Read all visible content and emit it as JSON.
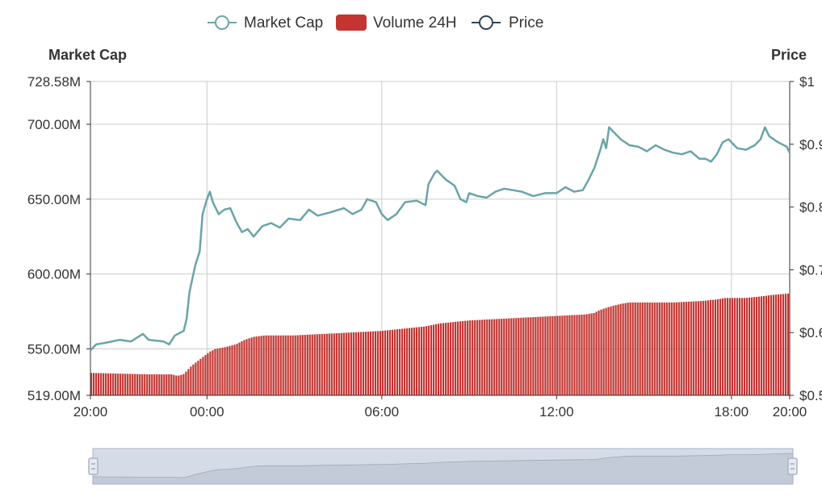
{
  "colors": {
    "market_cap": "#6aa4a8",
    "volume": "#c23531",
    "price": "#2f4554",
    "grid": "#cccccc",
    "axis": "#333333",
    "zoom_fill": "#d5dce7",
    "zoom_border": "#aab4c8"
  },
  "legend": [
    {
      "name": "Market Cap",
      "icon": "line-circle-icon"
    },
    {
      "name": "Volume 24H",
      "icon": "rect-icon"
    },
    {
      "name": "Price",
      "icon": "line-circle-icon"
    }
  ],
  "chart_data": {
    "type": "line",
    "x_axis": {
      "tick_labels": [
        "20:00",
        "00:00",
        "06:00",
        "12:00",
        "18:00",
        "20:00"
      ],
      "tick_times_hours": [
        0,
        4,
        10,
        16,
        22,
        24
      ],
      "range_hours": [
        0,
        24
      ]
    },
    "y_axis_left": {
      "name": "Market Cap",
      "range": [
        519,
        728.58
      ],
      "unit": "M",
      "tick_values": [
        519,
        550,
        600,
        650,
        700,
        728.58
      ],
      "tick_labels": [
        "519.00M",
        "550.00M",
        "600.00M",
        "650.00M",
        "700.00M",
        "728.58M"
      ]
    },
    "y_axis_right": {
      "name": "Price",
      "tick_labels": [
        "$0.5",
        "$0.6",
        "$0.7",
        "$0.8",
        "$0.9",
        "$1"
      ]
    },
    "grid": true,
    "legend_position": "top-center",
    "series": [
      {
        "name": "Market Cap",
        "type": "line",
        "axis": "left",
        "points": [
          [
            0,
            549
          ],
          [
            0.2,
            553
          ],
          [
            0.5,
            554
          ],
          [
            1,
            556
          ],
          [
            1.4,
            555
          ],
          [
            1.8,
            560
          ],
          [
            2,
            556
          ],
          [
            2.5,
            555
          ],
          [
            2.7,
            553
          ],
          [
            2.9,
            559
          ],
          [
            3.2,
            562
          ],
          [
            3.3,
            570
          ],
          [
            3.4,
            588
          ],
          [
            3.6,
            606
          ],
          [
            3.75,
            615
          ],
          [
            3.85,
            640
          ],
          [
            4,
            650
          ],
          [
            4.1,
            655
          ],
          [
            4.2,
            648
          ],
          [
            4.4,
            640
          ],
          [
            4.6,
            643
          ],
          [
            4.8,
            644
          ],
          [
            5,
            635
          ],
          [
            5.2,
            628
          ],
          [
            5.4,
            630
          ],
          [
            5.6,
            625
          ],
          [
            5.9,
            632
          ],
          [
            6.2,
            634
          ],
          [
            6.5,
            631
          ],
          [
            6.8,
            637
          ],
          [
            7.2,
            636
          ],
          [
            7.5,
            643
          ],
          [
            7.8,
            639
          ],
          [
            8.2,
            641
          ],
          [
            8.7,
            644
          ],
          [
            9,
            640
          ],
          [
            9.3,
            643
          ],
          [
            9.5,
            650
          ],
          [
            9.8,
            648
          ],
          [
            10,
            640
          ],
          [
            10.2,
            636
          ],
          [
            10.5,
            640
          ],
          [
            10.8,
            648
          ],
          [
            11.2,
            649
          ],
          [
            11.5,
            646
          ],
          [
            11.6,
            660
          ],
          [
            11.8,
            667
          ],
          [
            11.9,
            669
          ],
          [
            12.2,
            663
          ],
          [
            12.5,
            659
          ],
          [
            12.7,
            650
          ],
          [
            12.9,
            648
          ],
          [
            13,
            654
          ],
          [
            13.3,
            652
          ],
          [
            13.6,
            651
          ],
          [
            13.9,
            655
          ],
          [
            14.2,
            657
          ],
          [
            14.5,
            656
          ],
          [
            14.8,
            655
          ],
          [
            15.2,
            652
          ],
          [
            15.6,
            654
          ],
          [
            16,
            654
          ],
          [
            16.3,
            658
          ],
          [
            16.6,
            655
          ],
          [
            16.9,
            656
          ],
          [
            17.1,
            663
          ],
          [
            17.3,
            671
          ],
          [
            17.5,
            683
          ],
          [
            17.6,
            690
          ],
          [
            17.7,
            684
          ],
          [
            17.8,
            698
          ],
          [
            18,
            694
          ],
          [
            18.2,
            690
          ],
          [
            18.5,
            686
          ],
          [
            18.8,
            685
          ],
          [
            19.1,
            682
          ],
          [
            19.4,
            686
          ],
          [
            19.7,
            683
          ],
          [
            20,
            681
          ],
          [
            20.3,
            680
          ],
          [
            20.6,
            682
          ],
          [
            20.9,
            677
          ],
          [
            21.1,
            677
          ],
          [
            21.3,
            675
          ],
          [
            21.5,
            680
          ],
          [
            21.7,
            688
          ],
          [
            21.9,
            690
          ],
          [
            22.2,
            684
          ],
          [
            22.5,
            683
          ],
          [
            22.8,
            686
          ],
          [
            23,
            690
          ],
          [
            23.15,
            698
          ],
          [
            23.3,
            692
          ],
          [
            23.6,
            688
          ],
          [
            23.9,
            685
          ],
          [
            24,
            681
          ]
        ]
      },
      {
        "name": "Volume 24H",
        "type": "bar",
        "axis": "left",
        "points": [
          [
            0,
            534
          ],
          [
            2,
            533
          ],
          [
            2.8,
            533
          ],
          [
            3,
            532
          ],
          [
            3.2,
            533
          ],
          [
            3.3,
            535
          ],
          [
            3.5,
            539
          ],
          [
            3.7,
            542
          ],
          [
            3.9,
            545
          ],
          [
            4.1,
            548
          ],
          [
            4.3,
            550
          ],
          [
            4.6,
            551
          ],
          [
            5,
            553
          ],
          [
            5.3,
            556
          ],
          [
            5.6,
            558
          ],
          [
            6,
            559
          ],
          [
            7,
            559
          ],
          [
            8,
            560
          ],
          [
            9,
            561
          ],
          [
            10,
            562
          ],
          [
            11,
            564
          ],
          [
            11.5,
            565
          ],
          [
            12,
            567
          ],
          [
            12.5,
            568
          ],
          [
            13,
            569
          ],
          [
            14,
            570
          ],
          [
            15,
            571
          ],
          [
            16,
            572
          ],
          [
            17,
            573
          ],
          [
            17.3,
            574
          ],
          [
            17.5,
            576
          ],
          [
            17.8,
            578
          ],
          [
            18.2,
            580
          ],
          [
            18.5,
            581
          ],
          [
            19,
            581
          ],
          [
            20,
            581
          ],
          [
            21,
            582
          ],
          [
            21.5,
            583
          ],
          [
            21.8,
            584
          ],
          [
            22.5,
            584
          ],
          [
            23,
            585
          ],
          [
            23.4,
            586
          ],
          [
            24,
            587
          ]
        ]
      },
      {
        "name": "Price",
        "type": "line",
        "axis": "right",
        "points": []
      }
    ]
  }
}
